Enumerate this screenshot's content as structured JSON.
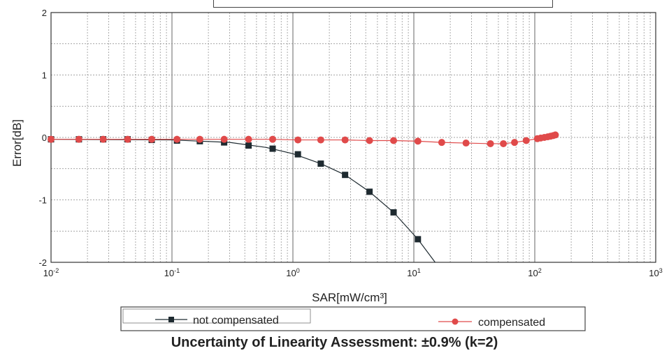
{
  "chart_data": {
    "type": "scatter",
    "xscale": "log",
    "xlim": [
      0.01,
      1000
    ],
    "ylim": [
      -2,
      2
    ],
    "xlabel": "SAR[mW/cm³]",
    "ylabel": "Error[dB]",
    "grid": true,
    "legend_position": "bottom",
    "x_ticks": [
      {
        "label": "10",
        "sup": "-2"
      },
      {
        "label": "10",
        "sup": "-1"
      },
      {
        "label": "10",
        "sup": "0"
      },
      {
        "label": "10",
        "sup": "1"
      },
      {
        "label": "10",
        "sup": "2"
      },
      {
        "label": "10",
        "sup": "3"
      }
    ],
    "y_ticks": [
      "2",
      "1",
      "0",
      "-1",
      "-2"
    ],
    "series": [
      {
        "name": "not compensated",
        "color": "#1e2a30",
        "marker": "square",
        "x": [
          0.01,
          0.017,
          0.027,
          0.043,
          0.068,
          0.11,
          0.17,
          0.27,
          0.43,
          0.68,
          1.1,
          1.7,
          2.7,
          4.3,
          6.8,
          10.8
        ],
        "y": [
          -0.03,
          -0.03,
          -0.03,
          -0.03,
          -0.04,
          -0.05,
          -0.06,
          -0.08,
          -0.13,
          -0.18,
          -0.27,
          -0.42,
          -0.6,
          -0.87,
          -1.2,
          -1.63
        ],
        "curve_x": [
          0.01,
          0.1,
          0.3,
          0.6,
          1.0,
          1.7,
          2.7,
          4.3,
          6.8,
          10.8,
          15.0
        ],
        "curve_y": [
          -0.03,
          -0.04,
          -0.08,
          -0.16,
          -0.26,
          -0.42,
          -0.6,
          -0.87,
          -1.2,
          -1.63,
          -2.05
        ]
      },
      {
        "name": "compensated",
        "color": "#e04a4a",
        "marker": "circle",
        "x": [
          0.01,
          0.017,
          0.027,
          0.043,
          0.068,
          0.11,
          0.17,
          0.27,
          0.43,
          0.68,
          1.1,
          1.7,
          2.7,
          4.3,
          6.8,
          10.8,
          17,
          27,
          43,
          55,
          68,
          85,
          105,
          112,
          120,
          128,
          135,
          142,
          148
        ],
        "y": [
          -0.03,
          -0.03,
          -0.03,
          -0.03,
          -0.03,
          -0.03,
          -0.03,
          -0.03,
          -0.03,
          -0.03,
          -0.04,
          -0.04,
          -0.04,
          -0.05,
          -0.05,
          -0.06,
          -0.08,
          -0.09,
          -0.1,
          -0.1,
          -0.08,
          -0.05,
          -0.02,
          -0.01,
          0.0,
          0.01,
          0.02,
          0.03,
          0.04
        ]
      }
    ]
  },
  "caption": "Uncertainty of Linearity Assessment: ±0.9% (k=2)"
}
